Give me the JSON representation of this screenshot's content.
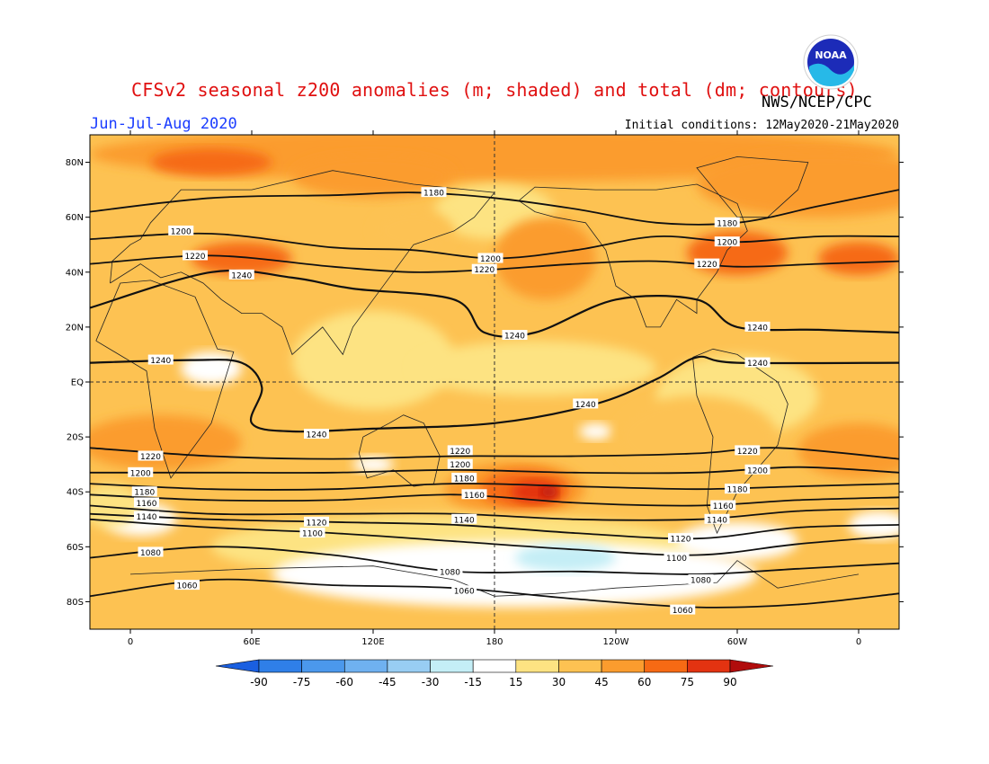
{
  "header": {
    "title": "CFSv2 seasonal z200 anomalies (m; shaded) and total (dm; contours)",
    "agency": "NWS/NCEP/CPC",
    "period": "Jun-Jul-Aug 2020",
    "initial_conditions": "Initial conditions: 12May2020-21May2020",
    "logo_text": "NOAA"
  },
  "map": {
    "lon_range": [
      -20,
      380
    ],
    "lat_range": [
      -90,
      90
    ],
    "lat_ticks": [
      {
        "value": 80,
        "label": "80N"
      },
      {
        "value": 60,
        "label": "60N"
      },
      {
        "value": 40,
        "label": "40N"
      },
      {
        "value": 20,
        "label": "20N"
      },
      {
        "value": 0,
        "label": "EQ"
      },
      {
        "value": -20,
        "label": "20S"
      },
      {
        "value": -40,
        "label": "40S"
      },
      {
        "value": -60,
        "label": "60S"
      },
      {
        "value": -80,
        "label": "80S"
      }
    ],
    "lon_ticks": [
      {
        "value": 0,
        "label": "0"
      },
      {
        "value": 60,
        "label": "60E"
      },
      {
        "value": 120,
        "label": "120E"
      },
      {
        "value": 180,
        "label": "180"
      },
      {
        "value": 240,
        "label": "120W"
      },
      {
        "value": 300,
        "label": "60W"
      },
      {
        "value": 360,
        "label": "0"
      }
    ],
    "contours": [
      {
        "value": 1180,
        "label": "1180",
        "points": [
          [
            -20,
            62
          ],
          [
            40,
            67
          ],
          [
            100,
            68
          ],
          [
            140,
            69
          ],
          [
            180,
            67
          ],
          [
            220,
            63
          ],
          [
            260,
            58
          ],
          [
            300,
            58
          ],
          [
            340,
            64
          ],
          [
            380,
            70
          ]
        ],
        "labels": [
          [
            150,
            69
          ],
          [
            295,
            58
          ]
        ]
      },
      {
        "value": 1200,
        "label": "1200",
        "points": [
          [
            -20,
            52
          ],
          [
            40,
            54
          ],
          [
            100,
            49
          ],
          [
            140,
            48
          ],
          [
            180,
            45
          ],
          [
            220,
            48
          ],
          [
            260,
            53
          ],
          [
            300,
            51
          ],
          [
            340,
            53
          ],
          [
            380,
            53
          ]
        ],
        "labels": [
          [
            25,
            55
          ],
          [
            178,
            45
          ],
          [
            295,
            51
          ]
        ]
      },
      {
        "value": 1220,
        "label": "1220",
        "points": [
          [
            -20,
            43
          ],
          [
            40,
            46
          ],
          [
            100,
            42
          ],
          [
            140,
            40
          ],
          [
            180,
            41
          ],
          [
            220,
            43
          ],
          [
            260,
            44
          ],
          [
            300,
            42
          ],
          [
            340,
            43
          ],
          [
            380,
            44
          ]
        ],
        "labels": [
          [
            32,
            46
          ],
          [
            175,
            41
          ],
          [
            285,
            43
          ]
        ]
      },
      {
        "value": 1240,
        "label": "1240",
        "points": [
          [
            -20,
            27
          ],
          [
            40,
            40
          ],
          [
            80,
            38
          ],
          [
            110,
            34
          ],
          [
            160,
            30
          ],
          [
            175,
            18
          ],
          [
            200,
            18
          ],
          [
            240,
            30
          ],
          [
            280,
            30
          ],
          [
            300,
            20
          ],
          [
            340,
            19
          ],
          [
            380,
            18
          ]
        ],
        "labels": [
          [
            55,
            39
          ],
          [
            190,
            17
          ],
          [
            310,
            20
          ],
          [
            15,
            8
          ],
          [
            92,
            -19
          ],
          [
            225,
            -8
          ],
          [
            310,
            7
          ]
        ]
      },
      {
        "value": 1240,
        "label": "1240",
        "points": [
          [
            -20,
            7
          ],
          [
            30,
            8
          ],
          [
            55,
            7
          ],
          [
            65,
            -2
          ],
          [
            60,
            -15
          ],
          [
            80,
            -18
          ],
          [
            120,
            -17
          ],
          [
            180,
            -15
          ],
          [
            230,
            -8
          ],
          [
            260,
            1
          ],
          [
            280,
            9
          ],
          [
            300,
            7
          ],
          [
            380,
            7
          ]
        ],
        "labels": []
      },
      {
        "value": 1220,
        "label": "1220",
        "points": [
          [
            -20,
            -24
          ],
          [
            40,
            -27
          ],
          [
            100,
            -28
          ],
          [
            160,
            -27
          ],
          [
            220,
            -27
          ],
          [
            280,
            -26
          ],
          [
            320,
            -24
          ],
          [
            380,
            -28
          ]
        ],
        "labels": [
          [
            10,
            -27
          ],
          [
            163,
            -25
          ],
          [
            305,
            -25
          ]
        ]
      },
      {
        "value": 1200,
        "label": "1200",
        "points": [
          [
            -20,
            -33
          ],
          [
            40,
            -33
          ],
          [
            100,
            -33
          ],
          [
            160,
            -32
          ],
          [
            220,
            -33
          ],
          [
            280,
            -33
          ],
          [
            330,
            -31
          ],
          [
            380,
            -33
          ]
        ],
        "labels": [
          [
            5,
            -33
          ],
          [
            163,
            -30
          ],
          [
            310,
            -32
          ]
        ]
      },
      {
        "value": 1180,
        "label": "1180",
        "points": [
          [
            -20,
            -37
          ],
          [
            40,
            -39
          ],
          [
            100,
            -39
          ],
          [
            160,
            -37
          ],
          [
            220,
            -38
          ],
          [
            280,
            -39
          ],
          [
            330,
            -38
          ],
          [
            380,
            -37
          ]
        ],
        "labels": [
          [
            7,
            -40
          ],
          [
            165,
            -35
          ],
          [
            300,
            -39
          ]
        ]
      },
      {
        "value": 1160,
        "label": "1160",
        "points": [
          [
            -20,
            -41
          ],
          [
            40,
            -43
          ],
          [
            100,
            -43
          ],
          [
            160,
            -41
          ],
          [
            220,
            -44
          ],
          [
            280,
            -45
          ],
          [
            330,
            -43
          ],
          [
            380,
            -42
          ]
        ],
        "labels": [
          [
            8,
            -44
          ],
          [
            170,
            -41
          ],
          [
            293,
            -45
          ]
        ]
      },
      {
        "value": 1140,
        "label": "1140",
        "points": [
          [
            -20,
            -45
          ],
          [
            40,
            -48
          ],
          [
            100,
            -48
          ],
          [
            160,
            -48
          ],
          [
            220,
            -50
          ],
          [
            280,
            -50
          ],
          [
            330,
            -47
          ],
          [
            380,
            -46
          ]
        ],
        "labels": [
          [
            8,
            -49
          ],
          [
            165,
            -50
          ],
          [
            290,
            -50
          ]
        ]
      },
      {
        "value": 1120,
        "label": "1120",
        "points": [
          [
            -20,
            -48
          ],
          [
            40,
            -50
          ],
          [
            100,
            -51
          ],
          [
            160,
            -52
          ],
          [
            220,
            -55
          ],
          [
            280,
            -57
          ],
          [
            330,
            -53
          ],
          [
            380,
            -52
          ]
        ],
        "labels": [
          [
            92,
            -51
          ],
          [
            272,
            -57
          ]
        ]
      },
      {
        "value": 1100,
        "label": "1100",
        "points": [
          [
            -20,
            -50
          ],
          [
            40,
            -53
          ],
          [
            100,
            -55
          ],
          [
            160,
            -58
          ],
          [
            220,
            -61
          ],
          [
            280,
            -63
          ],
          [
            330,
            -59
          ],
          [
            380,
            -56
          ]
        ],
        "labels": [
          [
            90,
            -55
          ],
          [
            270,
            -64
          ]
        ]
      },
      {
        "value": 1080,
        "label": "1080",
        "points": [
          [
            -20,
            -64
          ],
          [
            40,
            -60
          ],
          [
            100,
            -63
          ],
          [
            160,
            -69
          ],
          [
            220,
            -69
          ],
          [
            280,
            -70
          ],
          [
            330,
            -68
          ],
          [
            380,
            -66
          ]
        ],
        "labels": [
          [
            10,
            -62
          ],
          [
            158,
            -69
          ],
          [
            282,
            -72
          ]
        ]
      },
      {
        "value": 1060,
        "label": "1060",
        "points": [
          [
            -20,
            -78
          ],
          [
            40,
            -72
          ],
          [
            100,
            -74
          ],
          [
            160,
            -75
          ],
          [
            220,
            -79
          ],
          [
            280,
            -82
          ],
          [
            330,
            -81
          ],
          [
            380,
            -77
          ]
        ],
        "labels": [
          [
            28,
            -74
          ],
          [
            165,
            -76
          ],
          [
            273,
            -83
          ]
        ]
      }
    ]
  },
  "colorbar": {
    "levels": [
      "-90",
      "-75",
      "-60",
      "-45",
      "-30",
      "-15",
      "15",
      "30",
      "45",
      "60",
      "75",
      "90"
    ],
    "colors": [
      "#1a5fe0",
      "#2f7fe8",
      "#4b98ec",
      "#6fb1f0",
      "#98cdf3",
      "#c4eef6",
      "#ffffff",
      "#fde382",
      "#fdc252",
      "#fb9c2e",
      "#f66a14",
      "#e33311",
      "#b00c0c"
    ]
  }
}
